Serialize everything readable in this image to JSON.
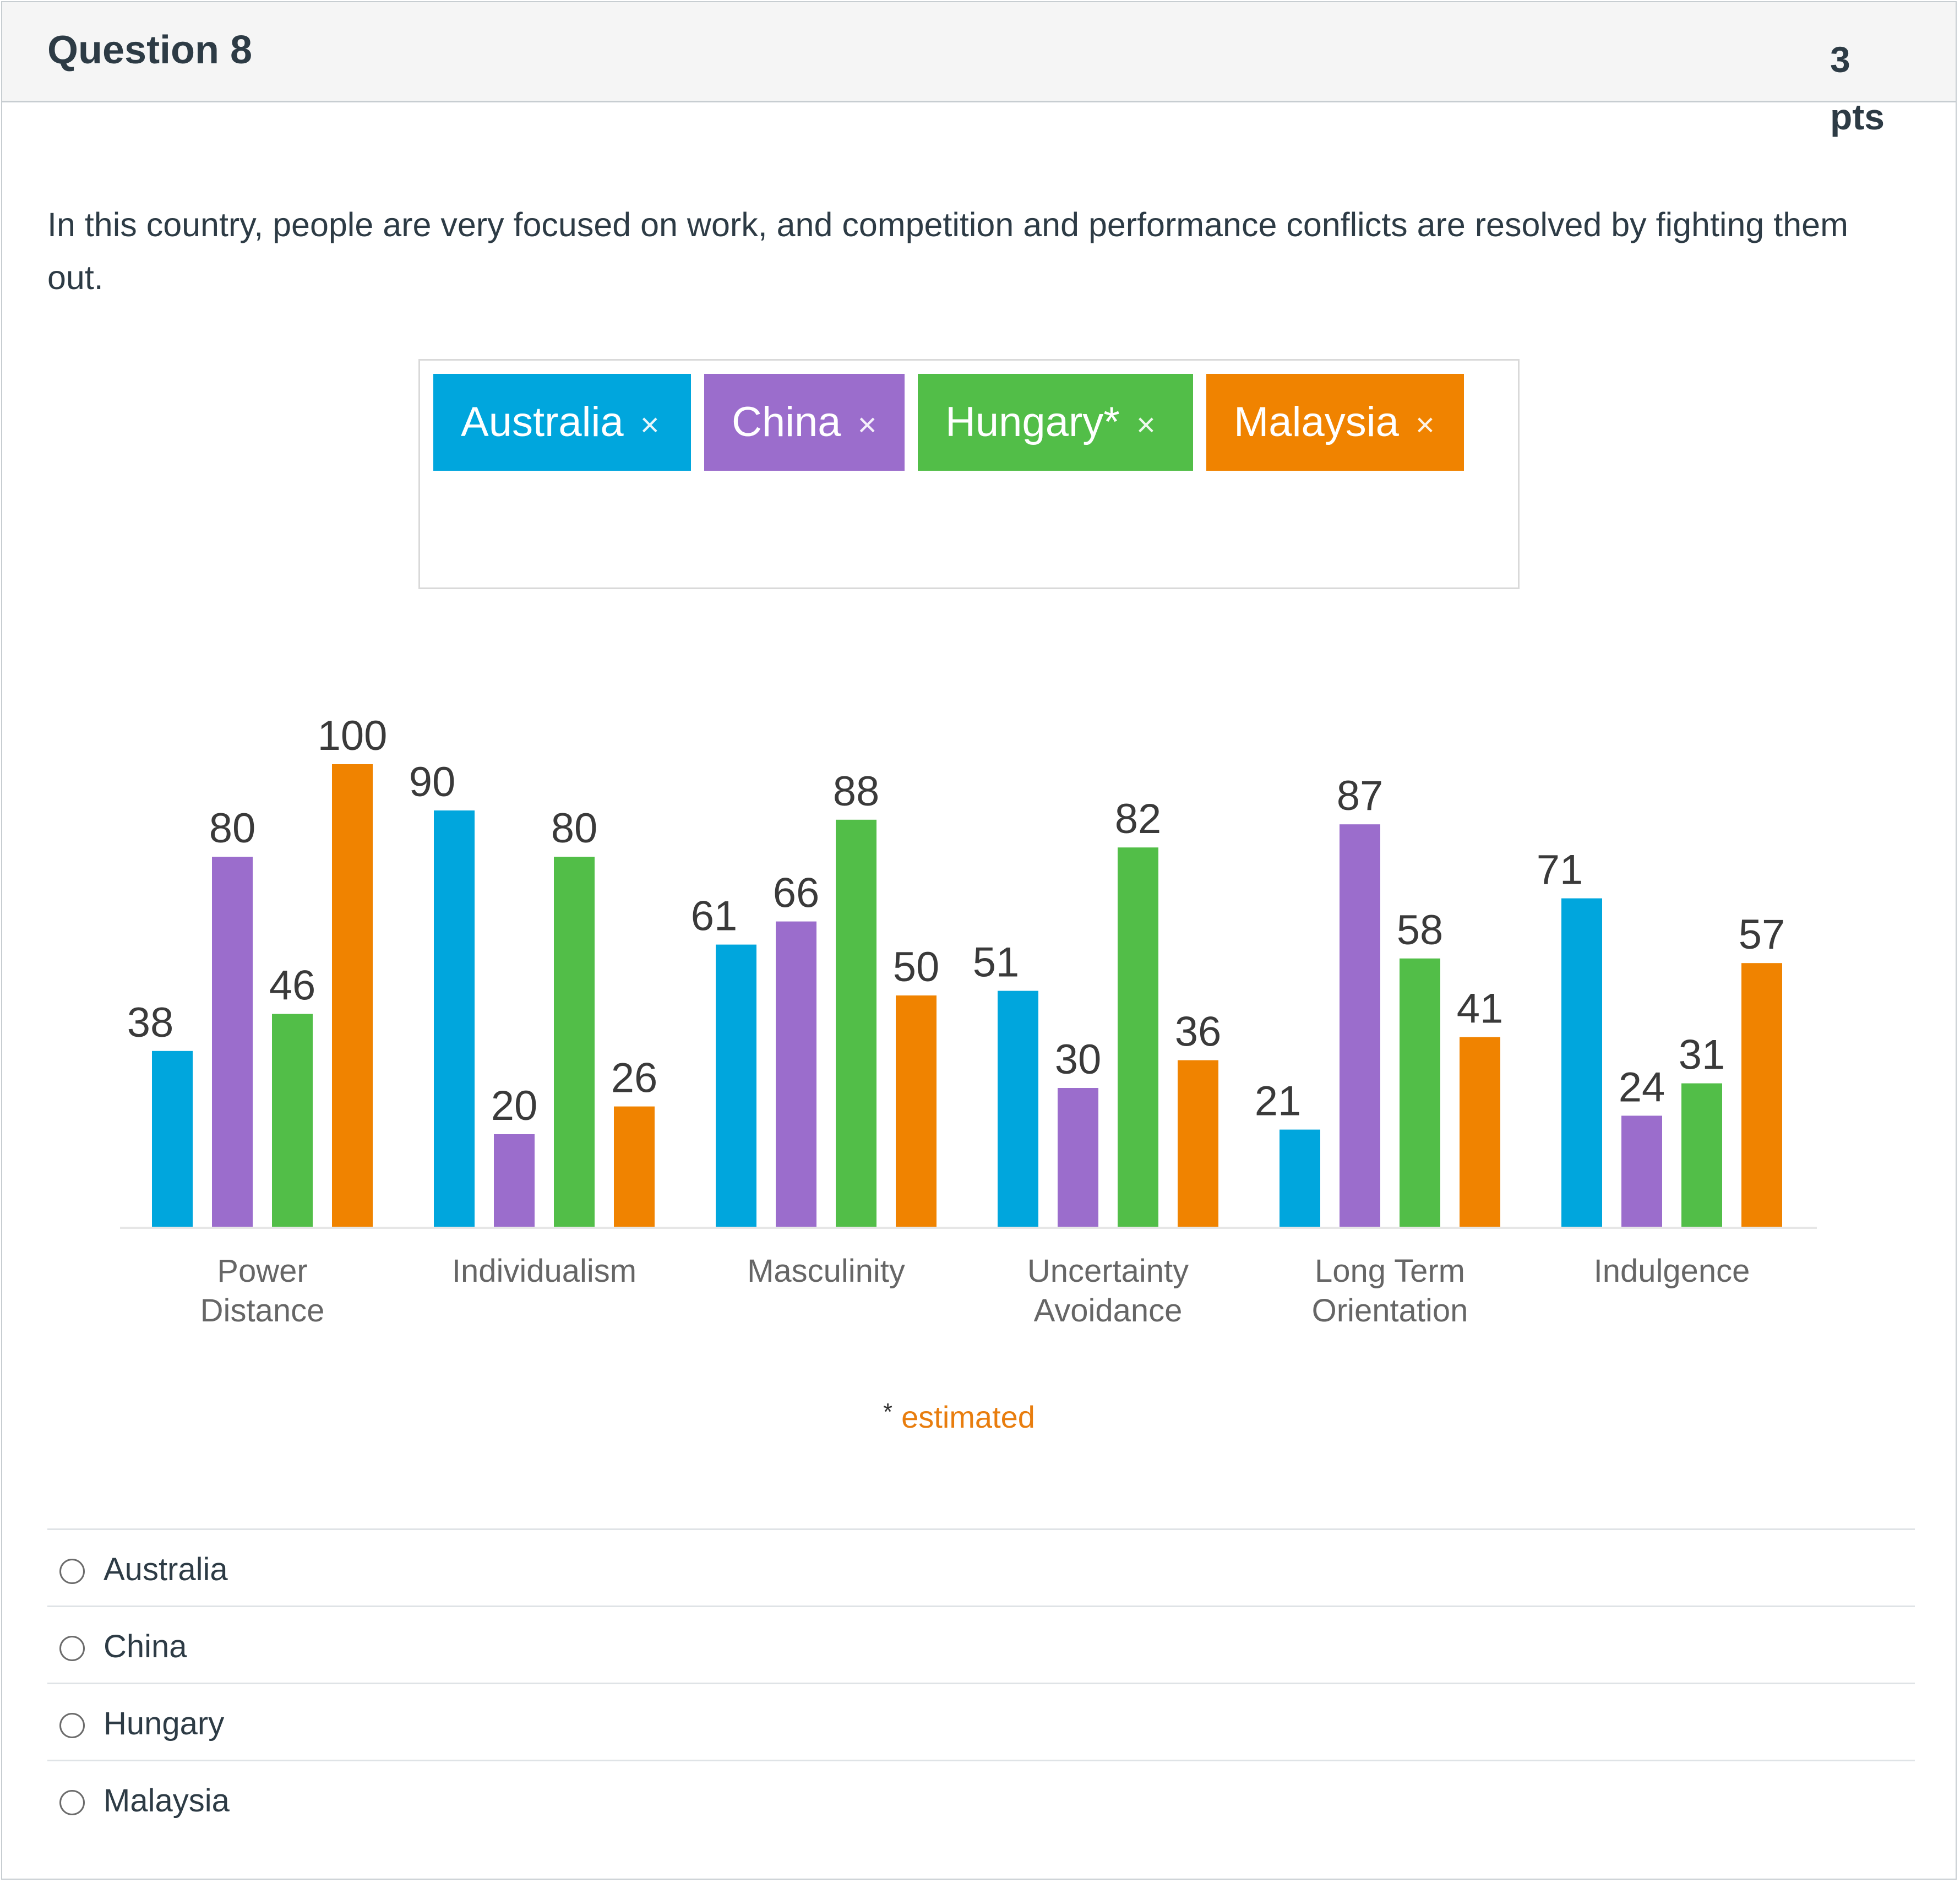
{
  "question": {
    "title": "Question 8",
    "points_value": "3",
    "points_unit": "pts",
    "text": "In this country, people are very focused on work, and competition and performance conflicts are resolved by fighting them out."
  },
  "legend": {
    "items": [
      {
        "label": "Australia",
        "close": "×",
        "color": "#00a6dd"
      },
      {
        "label": "China",
        "close": "×",
        "color": "#9b6dcc"
      },
      {
        "label": "Hungary*",
        "close": "×",
        "color": "#52be48"
      },
      {
        "label": "Malaysia",
        "close": "×",
        "color": "#f08300"
      }
    ]
  },
  "chart_data": {
    "type": "bar",
    "title": "",
    "xlabel": "",
    "ylabel": "",
    "ylim": [
      0,
      100
    ],
    "grid": false,
    "categories": [
      [
        "Power",
        "Distance"
      ],
      [
        "Individualism"
      ],
      [
        "Masculinity"
      ],
      [
        "Uncertainty",
        "Avoidance"
      ],
      [
        "Long Term",
        "Orientation"
      ],
      [
        "Indulgence"
      ]
    ],
    "series": [
      {
        "name": "Australia",
        "color": "#00a6dd",
        "values": [
          38,
          90,
          61,
          51,
          21,
          71
        ]
      },
      {
        "name": "China",
        "color": "#9b6dcc",
        "values": [
          80,
          20,
          66,
          30,
          87,
          24
        ]
      },
      {
        "name": "Hungary*",
        "color": "#52be48",
        "values": [
          46,
          80,
          88,
          82,
          58,
          31
        ]
      },
      {
        "name": "Malaysia",
        "color": "#f08300",
        "values": [
          100,
          26,
          50,
          36,
          41,
          57
        ]
      }
    ]
  },
  "footnote": {
    "star": "*",
    "text": "estimated"
  },
  "options": [
    "Australia",
    "China",
    "Hungary",
    "Malaysia"
  ],
  "colors": {
    "header_bg": "#f5f5f5",
    "border": "#c7cdd1",
    "text": "#2d3b45",
    "footnote": "#e87d0e"
  }
}
